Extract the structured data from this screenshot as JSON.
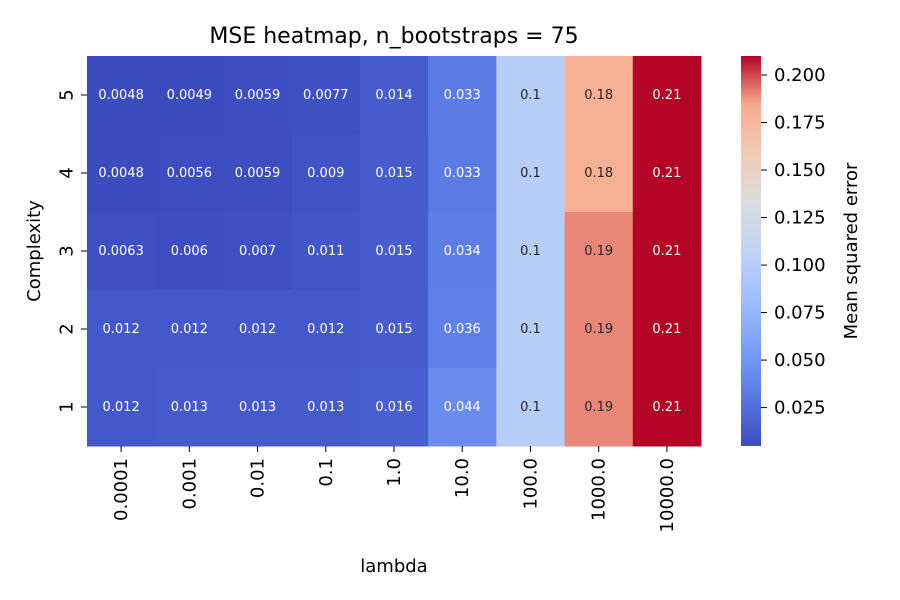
{
  "chart_data": {
    "type": "heatmap",
    "title": "MSE heatmap, n_bootstraps =  75",
    "xlabel": "lambda",
    "ylabel": "Complexity",
    "colorbar_label": "Mean squared error",
    "colormap": "coolwarm",
    "x_categories": [
      "0.0001",
      "0.001",
      "0.01",
      "0.1",
      "1.0",
      "10.0",
      "100.0",
      "1000.0",
      "10000.0"
    ],
    "y_categories": [
      "5",
      "4",
      "3",
      "2",
      "1"
    ],
    "values": [
      [
        0.0048,
        0.0049,
        0.0059,
        0.0077,
        0.014,
        0.033,
        0.1,
        0.18,
        0.21
      ],
      [
        0.0048,
        0.0056,
        0.0059,
        0.009,
        0.015,
        0.033,
        0.1,
        0.18,
        0.21
      ],
      [
        0.0063,
        0.006,
        0.007,
        0.011,
        0.015,
        0.034,
        0.1,
        0.19,
        0.21
      ],
      [
        0.012,
        0.012,
        0.012,
        0.012,
        0.015,
        0.036,
        0.1,
        0.19,
        0.21
      ],
      [
        0.012,
        0.013,
        0.013,
        0.013,
        0.016,
        0.044,
        0.1,
        0.19,
        0.21
      ]
    ],
    "labels": [
      [
        "0.0048",
        "0.0049",
        "0.0059",
        "0.0077",
        "0.014",
        "0.033",
        "0.1",
        "0.18",
        "0.21"
      ],
      [
        "0.0048",
        "0.0056",
        "0.0059",
        "0.009",
        "0.015",
        "0.033",
        "0.1",
        "0.18",
        "0.21"
      ],
      [
        "0.0063",
        "0.006",
        "0.007",
        "0.011",
        "0.015",
        "0.034",
        "0.1",
        "0.19",
        "0.21"
      ],
      [
        "0.012",
        "0.012",
        "0.012",
        "0.012",
        "0.015",
        "0.036",
        "0.1",
        "0.19",
        "0.21"
      ],
      [
        "0.012",
        "0.013",
        "0.013",
        "0.013",
        "0.016",
        "0.044",
        "0.1",
        "0.19",
        "0.21"
      ]
    ],
    "colorbar_range": [
      0.0048,
      0.21
    ],
    "colorbar_ticks": [
      0.025,
      0.05,
      0.075,
      0.1,
      0.125,
      0.15,
      0.175,
      0.2
    ],
    "colorbar_tick_labels": [
      "0.025",
      "0.050",
      "0.075",
      "0.100",
      "0.125",
      "0.150",
      "0.175",
      "0.200"
    ],
    "grid": false
  }
}
